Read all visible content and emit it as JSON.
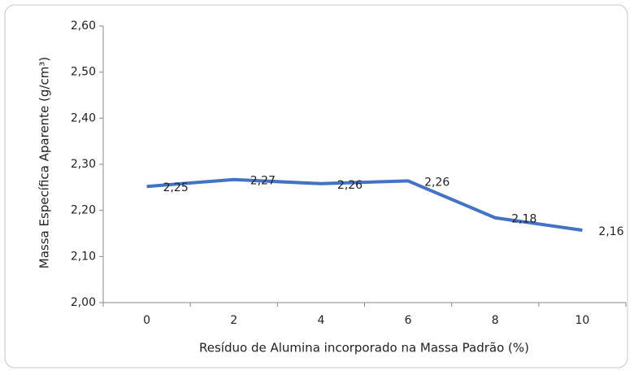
{
  "chart_data": {
    "type": "line",
    "categories": [
      "0",
      "2",
      "4",
      "6",
      "8",
      "10"
    ],
    "series": [
      {
        "name": "Massa Específica Aparente",
        "color": "#4472c4",
        "values": [
          2.252,
          2.267,
          2.258,
          2.264,
          2.184,
          2.157
        ],
        "value_labels": [
          "2,25",
          "2,27",
          "2,26",
          "2,26",
          "2,18",
          "2,16"
        ]
      }
    ],
    "xlabel": "Resíduo de Alumina incorporado na Massa Padrão (%)",
    "ylabel": "Massa Específica Aparente (g/cm³)",
    "ylim": [
      2.0,
      2.6
    ],
    "yticks": [
      {
        "value": 2.0,
        "label": "2,00"
      },
      {
        "value": 2.1,
        "label": "2,10"
      },
      {
        "value": 2.2,
        "label": "2,20"
      },
      {
        "value": 2.3,
        "label": "2,30"
      },
      {
        "value": 2.4,
        "label": "2,40"
      },
      {
        "value": 2.5,
        "label": "2,50"
      },
      {
        "value": 2.6,
        "label": "2,60"
      }
    ]
  }
}
